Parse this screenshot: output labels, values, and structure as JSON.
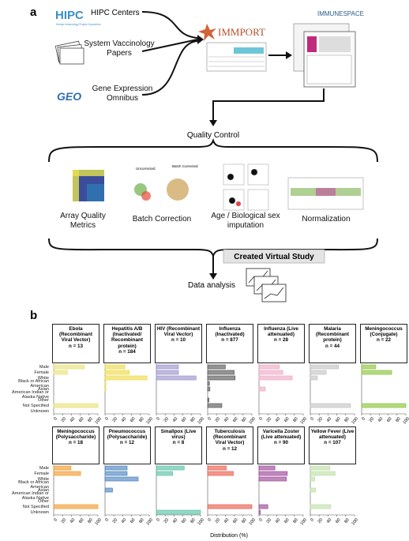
{
  "panel_a": {
    "label": "a",
    "logos": [
      "HIPC",
      "Human Immunology Project Consortium",
      "GEO"
    ],
    "sources": [
      "HIPC Centers",
      "System Vaccinology Papers",
      "Gene Expression Omnibus"
    ],
    "repository": "IMMPORT",
    "portal": "IMMUNESPACE",
    "qc_title": "Quality Control",
    "thumb_labels": [
      "Uncorrected",
      "Batch Corrected"
    ],
    "qc_steps": [
      "Array Quality Metrics",
      "Batch Correction",
      "Age / Biological sex imputation",
      "Normalization"
    ],
    "virtual_study": "Created Virtual Study",
    "analysis": "Data analysis"
  },
  "panel_b": {
    "label": "b",
    "type": "bar",
    "categories": [
      "Male",
      "Female",
      "White",
      "Black or African American",
      "Asian",
      "American Indian or Alaska Native",
      "Other",
      "Not Specified",
      "Unknown"
    ],
    "xlim": [
      0,
      100
    ],
    "xticks": [
      0,
      20,
      40,
      60,
      80,
      100
    ],
    "xlabel": "Distribution (%)",
    "panels": [
      {
        "title": "Ebola (Recombinant Viral Vector)",
        "n": "n = 13",
        "color": "#e8e27a",
        "values": [
          69,
          31,
          null,
          null,
          null,
          null,
          null,
          100,
          null
        ]
      },
      {
        "title": "Hepatitis A/B (Inactivated/ Recombinant protein)",
        "n": "n = 184",
        "color": "#eedc4a",
        "values": [
          45,
          55,
          95,
          2,
          2,
          null,
          null,
          null,
          null
        ]
      },
      {
        "title": "HIV (Recombinant Viral Vector)",
        "n": "n = 10",
        "color": "#9c95cc",
        "values": [
          50,
          50,
          90,
          null,
          null,
          null,
          null,
          null,
          null
        ]
      },
      {
        "title": "Influenza (Inactivated)",
        "n": "n = 877",
        "color": "#5a5a5a",
        "values": [
          40,
          60,
          62,
          4,
          5,
          null,
          3,
          32,
          null
        ]
      },
      {
        "title": "Influenza (Live attenuated)",
        "n": "n = 28",
        "color": "#eeaac6",
        "values": [
          46,
          54,
          75,
          null,
          14,
          null,
          null,
          null,
          null
        ]
      },
      {
        "title": "Malaria (Recombinant protein)",
        "n": "n = 44",
        "color": "#c4c4c4",
        "values": [
          64,
          36,
          16,
          null,
          null,
          null,
          null,
          91,
          null
        ]
      },
      {
        "title": "Meningococcus (Conjugate)",
        "n": "n = 22",
        "color": "#8cc43e",
        "values": [
          32,
          68,
          null,
          null,
          null,
          null,
          null,
          100,
          null
        ]
      },
      {
        "title": "Meningococcus (Polysaccharide)",
        "n": "n = 18",
        "color": "#f29b30",
        "values": [
          39,
          61,
          null,
          null,
          null,
          null,
          null,
          100,
          null
        ]
      },
      {
        "title": "Pneumococcus (Polysaccharide)",
        "n": "n = 12",
        "color": "#4f86c0",
        "values": [
          50,
          50,
          75,
          null,
          17,
          null,
          null,
          null,
          null
        ]
      },
      {
        "title": "Smallpox (Live virus)",
        "n": "n = 8",
        "color": "#5cc2a6",
        "values": [
          63,
          37,
          null,
          null,
          null,
          null,
          null,
          null,
          100
        ]
      },
      {
        "title": "Tuberculosis (Recombinant Viral Vector)",
        "n": "n = 12",
        "color": "#ec5e4e",
        "values": [
          42,
          58,
          null,
          null,
          null,
          null,
          null,
          100,
          null
        ]
      },
      {
        "title": "Varicella Zoster (Live attenuated)",
        "n": "n = 90",
        "color": "#9e4a9a",
        "values": [
          36,
          64,
          62,
          null,
          null,
          null,
          null,
          20,
          3
        ]
      },
      {
        "title": "Yellow Fever (Live attenuated)",
        "n": "n = 107",
        "color": "#bfe0a8",
        "values": [
          44,
          56,
          10,
          null,
          12,
          null,
          null,
          46,
          null
        ]
      }
    ]
  }
}
